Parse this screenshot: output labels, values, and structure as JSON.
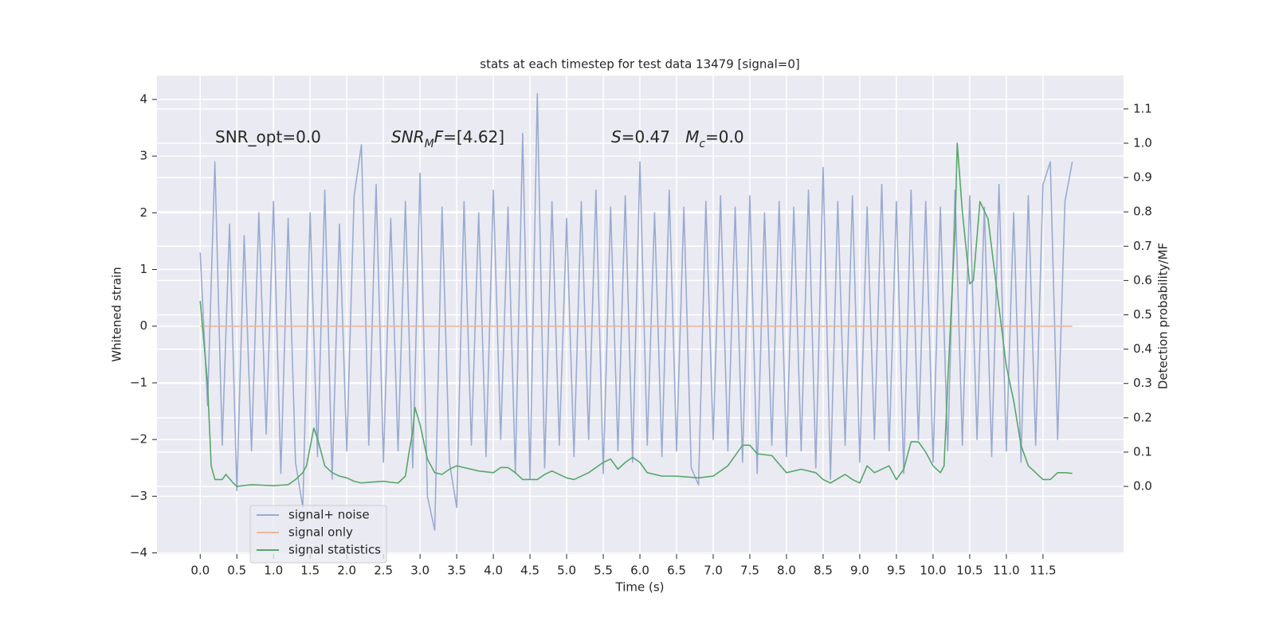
{
  "chart_data": {
    "type": "line",
    "title": "stats at each timestep for test data 13479 [signal=0]",
    "xlabel": "Time (s)",
    "ylabel": "Whitened strain",
    "y2label": "Detection probability/MF",
    "annotations": [
      [
        {
          "text": "SNR_opt=0.0"
        }
      ],
      [
        {
          "text": "SNR",
          "italic": true
        },
        {
          "text": "M",
          "italic": true,
          "sub": true
        },
        {
          "text": "F",
          "italic": true
        },
        {
          "text": "=[4.62]"
        }
      ],
      [
        {
          "text": "S",
          "italic": true
        },
        {
          "text": "=0.47   "
        },
        {
          "text": "M",
          "italic": true
        },
        {
          "text": "c",
          "italic": true,
          "sub": true
        },
        {
          "text": "=0.0"
        }
      ]
    ],
    "x": [
      0.0,
      0.1,
      0.2,
      0.3,
      0.4,
      0.5,
      0.6,
      0.7,
      0.8,
      0.9,
      1.0,
      1.1,
      1.2,
      1.3,
      1.4,
      1.5,
      1.6,
      1.7,
      1.8,
      1.9,
      2.0,
      2.1,
      2.2,
      2.3,
      2.4,
      2.5,
      2.6,
      2.7,
      2.8,
      2.9,
      3.0,
      3.1,
      3.2,
      3.3,
      3.4,
      3.5,
      3.6,
      3.7,
      3.8,
      3.9,
      4.0,
      4.1,
      4.2,
      4.3,
      4.4,
      4.5,
      4.6,
      4.7,
      4.8,
      4.9,
      5.0,
      5.1,
      5.2,
      5.3,
      5.4,
      5.5,
      5.6,
      5.7,
      5.8,
      5.9,
      6.0,
      6.1,
      6.2,
      6.3,
      6.4,
      6.5,
      6.6,
      6.7,
      6.8,
      6.9,
      7.0,
      7.1,
      7.2,
      7.3,
      7.4,
      7.5,
      7.6,
      7.7,
      7.8,
      7.9,
      8.0,
      8.1,
      8.2,
      8.3,
      8.4,
      8.5,
      8.6,
      8.7,
      8.8,
      8.9,
      9.0,
      9.1,
      9.2,
      9.3,
      9.4,
      9.5,
      9.6,
      9.7,
      9.8,
      9.9,
      10.0,
      10.1,
      10.2,
      10.3,
      10.4,
      10.5,
      10.6,
      10.7,
      10.8,
      10.9,
      11.0,
      11.1,
      11.2,
      11.3,
      11.4,
      11.5,
      11.6,
      11.7,
      11.8,
      11.9
    ],
    "series": [
      {
        "name": "signal+ noise",
        "color": "#9aabd1",
        "values": [
          1.3,
          -1.4,
          2.9,
          -2.1,
          1.8,
          -2.9,
          1.6,
          -2.2,
          2.0,
          -1.9,
          2.2,
          -2.6,
          1.9,
          -2.4,
          -3.2,
          2.0,
          -2.3,
          2.4,
          -2.7,
          1.8,
          -2.2,
          2.3,
          3.2,
          -2.1,
          2.5,
          -2.4,
          1.9,
          -2.2,
          2.2,
          -2.5,
          2.7,
          -3.0,
          -3.6,
          2.1,
          -2.4,
          -3.2,
          2.2,
          -2.1,
          2.0,
          -2.3,
          2.4,
          -2.0,
          2.1,
          -2.6,
          3.4,
          -2.7,
          4.1,
          -2.5,
          2.2,
          -2.1,
          1.9,
          -2.3,
          2.2,
          -2.0,
          2.4,
          -2.6,
          2.1,
          -2.2,
          2.3,
          -2.4,
          2.9,
          -2.1,
          2.0,
          -2.3,
          2.4,
          -2.2,
          2.1,
          -2.5,
          -2.8,
          2.2,
          -2.0,
          2.3,
          -2.2,
          2.1,
          -2.4,
          2.3,
          -2.6,
          2.0,
          -2.1,
          2.2,
          -2.3,
          2.1,
          -2.2,
          2.4,
          -2.5,
          2.8,
          -2.7,
          2.2,
          -2.1,
          2.3,
          -2.4,
          2.1,
          -2.0,
          2.5,
          -2.2,
          2.2,
          -2.6,
          2.4,
          -2.0,
          2.2,
          -2.4,
          2.1,
          -2.2,
          2.4,
          -2.1,
          2.3,
          -2.0,
          2.1,
          -2.3,
          2.5,
          -2.2,
          2.0,
          -2.4,
          2.3,
          -2.1,
          2.5,
          2.9,
          -2.0,
          2.2,
          2.9
        ]
      },
      {
        "name": "signal only",
        "color": "#eeb59a",
        "values": [
          0,
          0,
          0,
          0,
          0,
          0,
          0,
          0,
          0,
          0,
          0,
          0,
          0,
          0,
          0,
          0,
          0,
          0,
          0,
          0,
          0,
          0,
          0,
          0,
          0,
          0,
          0,
          0,
          0,
          0,
          0,
          0,
          0,
          0,
          0,
          0,
          0,
          0,
          0,
          0,
          0,
          0,
          0,
          0,
          0,
          0,
          0,
          0,
          0,
          0,
          0,
          0,
          0,
          0,
          0,
          0,
          0,
          0,
          0,
          0,
          0,
          0,
          0,
          0,
          0,
          0,
          0,
          0,
          0,
          0,
          0,
          0,
          0,
          0,
          0,
          0,
          0,
          0,
          0,
          0,
          0,
          0,
          0,
          0,
          0,
          0,
          0,
          0,
          0,
          0,
          0,
          0,
          0,
          0,
          0,
          0,
          0,
          0,
          0,
          0,
          0,
          0,
          0,
          0,
          0,
          0,
          0,
          0,
          0,
          0,
          0,
          0,
          0,
          0,
          0,
          0,
          0,
          0,
          0,
          0
        ]
      },
      {
        "name": "signal statistics",
        "color": "#55a868",
        "axis": "y2",
        "x": [
          0.0,
          0.1,
          0.15,
          0.2,
          0.3,
          0.35,
          0.45,
          0.5,
          0.7,
          1.0,
          1.2,
          1.3,
          1.4,
          1.45,
          1.55,
          1.6,
          1.7,
          1.8,
          1.9,
          2.0,
          2.1,
          2.2,
          2.3,
          2.5,
          2.6,
          2.7,
          2.8,
          2.85,
          2.9,
          2.93,
          3.0,
          3.1,
          3.2,
          3.3,
          3.4,
          3.5,
          3.6,
          3.8,
          4.0,
          4.1,
          4.2,
          4.3,
          4.4,
          4.6,
          4.7,
          4.8,
          5.0,
          5.1,
          5.3,
          5.5,
          5.6,
          5.7,
          5.8,
          5.9,
          6.0,
          6.1,
          6.3,
          6.5,
          6.8,
          7.0,
          7.2,
          7.4,
          7.5,
          7.6,
          7.8,
          8.0,
          8.2,
          8.4,
          8.5,
          8.6,
          8.8,
          8.9,
          9.0,
          9.1,
          9.2,
          9.4,
          9.5,
          9.6,
          9.7,
          9.8,
          9.9,
          10.0,
          10.1,
          10.15,
          10.2,
          10.3,
          10.33,
          10.4,
          10.5,
          10.55,
          10.64,
          10.75,
          11.0,
          11.1,
          11.2,
          11.3,
          11.5,
          11.6,
          11.7,
          11.8,
          11.9
        ],
        "values": [
          0.54,
          0.3,
          0.06,
          0.02,
          0.02,
          0.035,
          0.01,
          0.0,
          0.005,
          0.002,
          0.005,
          0.02,
          0.04,
          0.06,
          0.17,
          0.14,
          0.06,
          0.04,
          0.03,
          0.025,
          0.015,
          0.01,
          0.012,
          0.015,
          0.012,
          0.01,
          0.03,
          0.1,
          0.16,
          0.23,
          0.18,
          0.08,
          0.04,
          0.035,
          0.05,
          0.06,
          0.055,
          0.045,
          0.04,
          0.055,
          0.055,
          0.04,
          0.02,
          0.02,
          0.035,
          0.045,
          0.025,
          0.02,
          0.04,
          0.07,
          0.08,
          0.05,
          0.07,
          0.085,
          0.07,
          0.04,
          0.03,
          0.03,
          0.025,
          0.03,
          0.06,
          0.12,
          0.12,
          0.095,
          0.09,
          0.04,
          0.05,
          0.04,
          0.02,
          0.01,
          0.035,
          0.02,
          0.01,
          0.06,
          0.04,
          0.06,
          0.02,
          0.05,
          0.13,
          0.13,
          0.1,
          0.06,
          0.04,
          0.06,
          0.3,
          0.75,
          1.0,
          0.8,
          0.59,
          0.6,
          0.83,
          0.78,
          0.35,
          0.25,
          0.12,
          0.06,
          0.02,
          0.02,
          0.04,
          0.04,
          0.038
        ]
      }
    ],
    "xlim": [
      -0.59,
      12.6
    ],
    "ylim": [
      -4.02,
      4.42
    ],
    "y2lim": [
      -0.197,
      1.197
    ],
    "xticks": [
      {
        "value": 0,
        "label": "0.0"
      },
      0.5,
      {
        "value": 1,
        "label": "1.0"
      },
      1.5,
      {
        "value": 2,
        "label": "2.0"
      },
      2.5,
      {
        "value": 3,
        "label": "3.0"
      },
      3.5,
      {
        "value": 4,
        "label": "4.0"
      },
      4.5,
      {
        "value": 5,
        "label": "5.0"
      },
      5.5,
      {
        "value": 6,
        "label": "6.0"
      },
      6.5,
      {
        "value": 7,
        "label": "7.0"
      },
      7.5,
      {
        "value": 8,
        "label": "8.0"
      },
      8.5,
      {
        "value": 9,
        "label": "9.0"
      },
      9.5,
      {
        "value": 10,
        "label": "10.0"
      },
      10.5,
      {
        "value": 11,
        "label": "11.0"
      },
      11.5
    ],
    "yticks": [
      {
        "value": -4,
        "label": "−4"
      },
      {
        "value": -3,
        "label": "−3"
      },
      {
        "value": -2,
        "label": "−2"
      },
      {
        "value": -1,
        "label": "−1"
      },
      0,
      1,
      2,
      3,
      4
    ],
    "y2ticks": [
      {
        "value": 0,
        "label": "0.0"
      },
      0.1,
      0.2,
      0.3,
      0.4,
      0.5,
      0.6,
      0.7,
      0.8,
      0.9,
      {
        "value": 1,
        "label": "1.0"
      },
      1.1
    ],
    "grid": true,
    "legend": "lower left"
  }
}
